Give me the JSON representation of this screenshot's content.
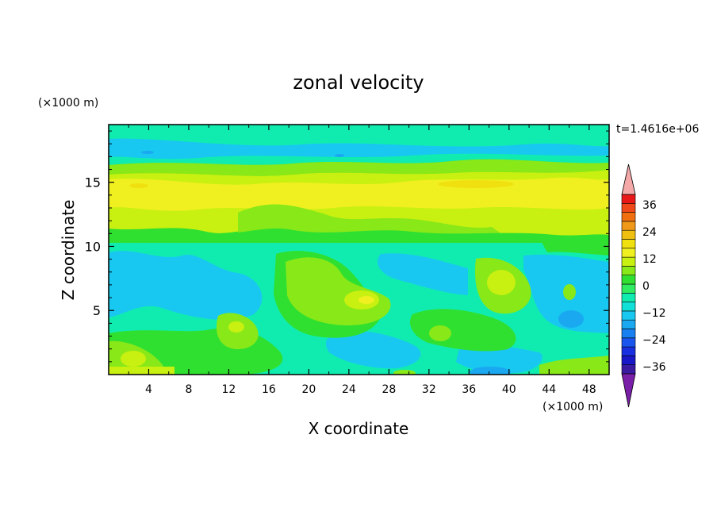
{
  "chart_data": {
    "type": "heatmap",
    "title": "zonal velocity",
    "xlabel": "X coordinate",
    "ylabel": "Z coordinate",
    "x_units": "(×1000 m)",
    "y_units": "(×1000 m)",
    "time_label": "t=1.4616e+06",
    "xlim": [
      0,
      50
    ],
    "ylim": [
      0,
      19.5
    ],
    "x_ticks": [
      "4",
      "8",
      "12",
      "16",
      "20",
      "24",
      "28",
      "32",
      "36",
      "40",
      "44",
      "48"
    ],
    "y_ticks": [
      "5",
      "10",
      "15"
    ],
    "grid": false,
    "legend_placement": "right",
    "colorbar": {
      "levels": [
        -42,
        -39,
        -36,
        -33,
        -30,
        -27,
        -24,
        -21,
        -18,
        -15,
        -12,
        -9,
        -6,
        -3,
        0,
        3,
        6,
        9,
        12,
        15,
        18,
        21,
        24,
        27,
        30,
        33,
        36,
        39,
        42
      ],
      "tick_labels": [
        "36",
        "24",
        "12",
        "0",
        "−12",
        "−24",
        "−36"
      ],
      "colors": [
        "#7a1fa8",
        "#3a1aa0",
        "#1818c8",
        "#1830e0",
        "#1a55ee",
        "#1880f0",
        "#1aa8f0",
        "#18c8f0",
        "#10e0d8",
        "#10ecb0",
        "#30ec60",
        "#30e030",
        "#88e818",
        "#c8f010",
        "#f0f020",
        "#f0e010",
        "#f0c010",
        "#f09818",
        "#f07010",
        "#f04818",
        "#e81818",
        "#f4a8a8"
      ],
      "extend": "both"
    },
    "fields": [
      {
        "name": "bottom-left-cyan",
        "value": -9
      },
      {
        "name": "upper-yellow-band",
        "value": 12
      },
      {
        "name": "top-cyan-band",
        "value": -9
      },
      {
        "name": "mid-green-band",
        "value": 3
      },
      {
        "name": "lower-yellow-blobs",
        "value": 9
      },
      {
        "name": "blue-pockets",
        "value": -15
      }
    ]
  }
}
